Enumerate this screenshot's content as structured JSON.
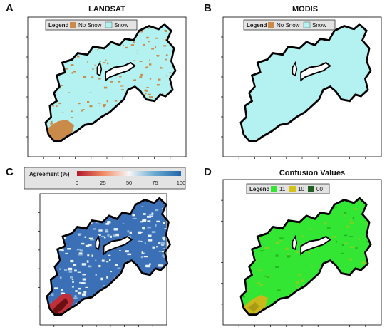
{
  "panels": [
    {
      "letter": "A",
      "title": "LANDSAT",
      "legend": {
        "title": "Legend",
        "items": [
          {
            "label": "No Snow",
            "color": "#c98a4a"
          },
          {
            "label": "Snow",
            "color": "#b4f1f1"
          }
        ]
      },
      "fill": "#b4f1f1",
      "speckle": "#c98a4a"
    },
    {
      "letter": "B",
      "title": "MODIS",
      "legend": {
        "title": "Legend",
        "items": [
          {
            "label": "No Snow",
            "color": "#c98a4a"
          },
          {
            "label": "Snow",
            "color": "#b4f1f1"
          }
        ]
      },
      "fill": "#b4f1f1",
      "speckle": "#c98a4a"
    },
    {
      "letter": "C",
      "title": "",
      "colorbar": {
        "title": "Agreement (%)",
        "ticks": [
          "0",
          "25",
          "50",
          "75",
          "100"
        ],
        "colors": [
          "#b2182b",
          "#ef8a62",
          "#f7f7f7",
          "#67a9cf",
          "#2166ac"
        ]
      },
      "fill": "#3b6fb6",
      "speckle": "#e9f2f8"
    },
    {
      "letter": "D",
      "title": "Confusion Values",
      "legend": {
        "title": "Legend",
        "items": [
          {
            "label": "11",
            "color": "#33e633"
          },
          {
            "label": "10",
            "color": "#d4c21a"
          },
          {
            "label": "00",
            "color": "#1f5f1f"
          }
        ]
      },
      "fill": "#33e633",
      "speckle": "#7ed321"
    }
  ],
  "colors": {
    "boundary": "#000000",
    "frame": "#000000"
  }
}
